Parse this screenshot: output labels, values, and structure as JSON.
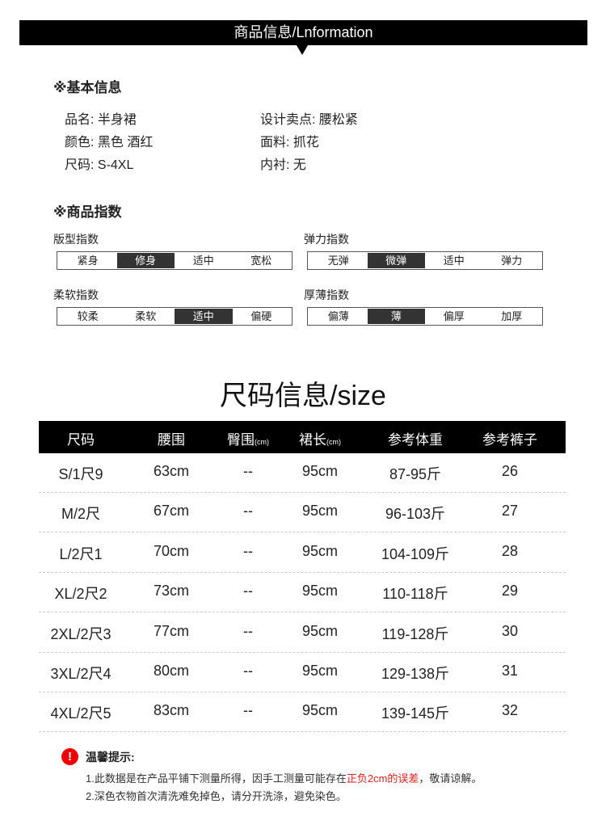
{
  "banner": {
    "title": "商品信息/Lnformation"
  },
  "basic": {
    "heading": "※基本信息",
    "items": [
      {
        "label": "品名:",
        "value": "半身裙"
      },
      {
        "label": "设计卖点:",
        "value": "腰松紧"
      },
      {
        "label": "颜色:",
        "value": "黑色 酒红"
      },
      {
        "label": "面料:",
        "value": "抓花"
      },
      {
        "label": "尺码:",
        "value": "S-4XL"
      },
      {
        "label": "内衬:",
        "value": "无"
      }
    ]
  },
  "index": {
    "heading": "※商品指数",
    "scales": [
      {
        "label": "版型指数",
        "options": [
          "紧身",
          "修身",
          "适中",
          "宽松"
        ],
        "selected": 1
      },
      {
        "label": "弹力指数",
        "options": [
          "无弹",
          "微弹",
          "适中",
          "弹力"
        ],
        "selected": 1
      },
      {
        "label": "柔软指数",
        "options": [
          "较柔",
          "柔软",
          "适中",
          "偏硬"
        ],
        "selected": 2
      },
      {
        "label": "厚薄指数",
        "options": [
          "偏薄",
          "薄",
          "偏厚",
          "加厚"
        ],
        "selected": 1
      }
    ]
  },
  "size": {
    "title": "尺码信息/size",
    "headers": [
      {
        "t": "尺码",
        "u": ""
      },
      {
        "t": "腰围",
        "u": ""
      },
      {
        "t": "臀围",
        "u": "(cm)"
      },
      {
        "t": "裙长",
        "u": "(cm)"
      },
      {
        "t": "参考体重",
        "u": ""
      },
      {
        "t": "参考裤子",
        "u": ""
      }
    ],
    "rows": [
      [
        "S/1尺9",
        "63cm",
        "--",
        "95cm",
        "87-95斤",
        "26"
      ],
      [
        "M/2尺",
        "67cm",
        "--",
        "95cm",
        "96-103斤",
        "27"
      ],
      [
        "L/2尺1",
        "70cm",
        "--",
        "95cm",
        "104-109斤",
        "28"
      ],
      [
        "XL/2尺2",
        "73cm",
        "--",
        "95cm",
        "110-118斤",
        "29"
      ],
      [
        "2XL/2尺3",
        "77cm",
        "--",
        "95cm",
        "119-128斤",
        "30"
      ],
      [
        "3XL/2尺4",
        "80cm",
        "--",
        "95cm",
        "129-138斤",
        "31"
      ],
      [
        "4XL/2尺5",
        "83cm",
        "--",
        "95cm",
        "139-145斤",
        "32"
      ]
    ]
  },
  "tips": {
    "icon": "!",
    "title": "温馨提示:",
    "line1_a": "1.此数据是在产品平铺下测量所得，因手工测量可能存在",
    "line1_red": "正负2cm的误差",
    "line1_b": "，敬请谅解。",
    "line2": "2.深色衣物首次清洗难免掉色，请分开洗涤，避免染色。"
  },
  "colors": {
    "accent_red": "#e02020",
    "header_bg": "#000000",
    "selected_bg": "#333333"
  }
}
